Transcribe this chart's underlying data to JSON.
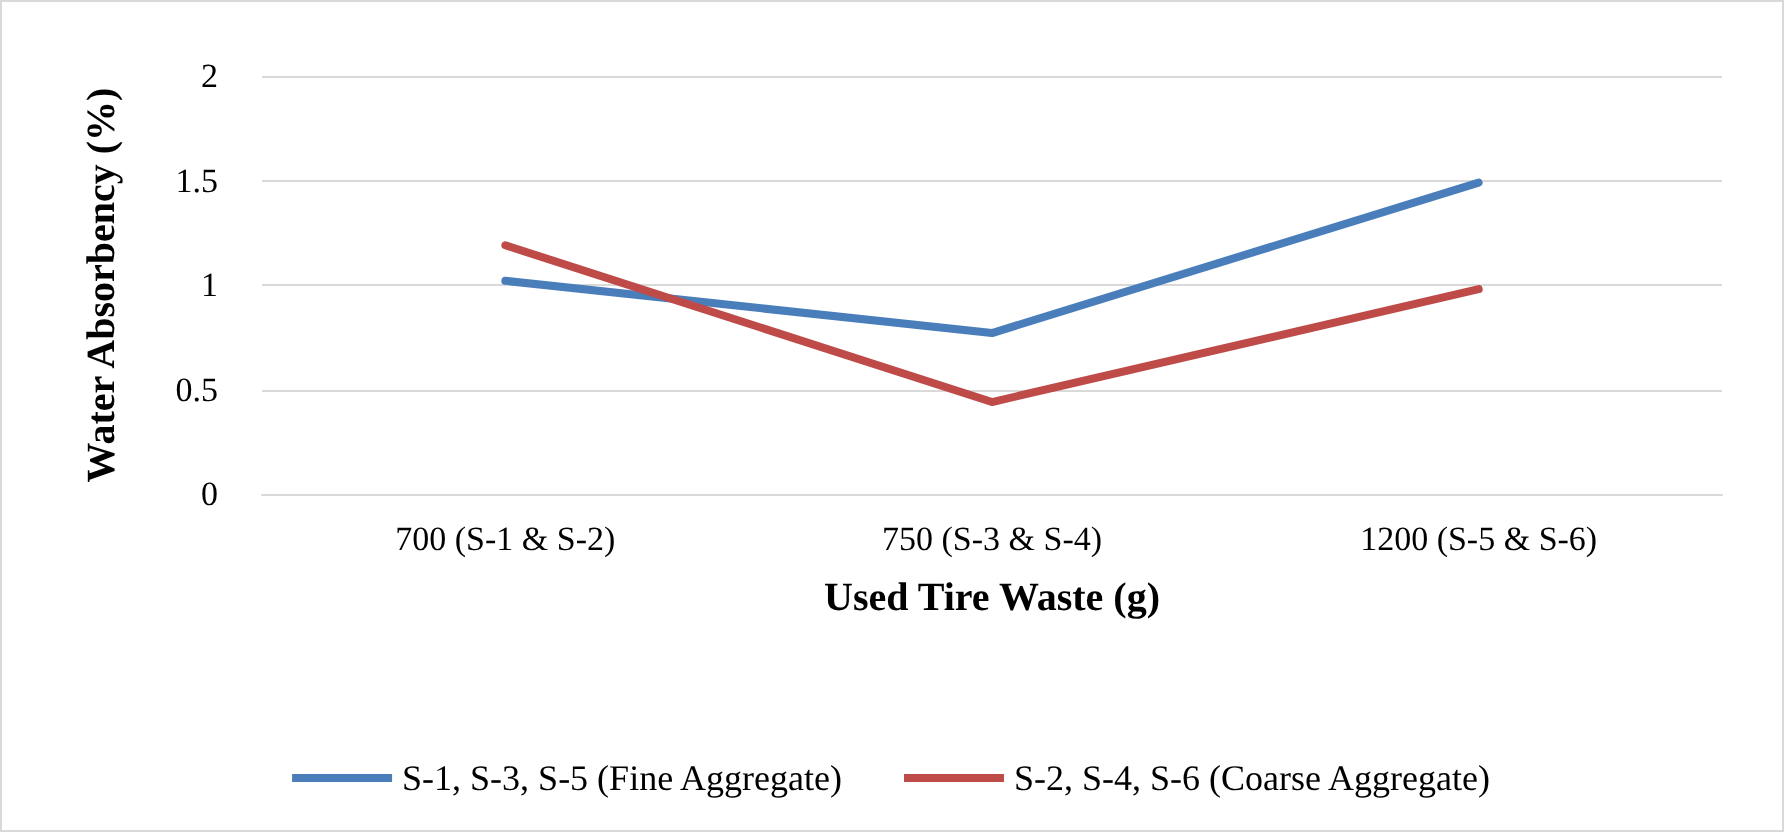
{
  "chart_data": {
    "type": "line",
    "xlabel": "Used Tire Waste (g)",
    "ylabel": "Water Absorbency (%)",
    "categories": [
      "700 (S-1 & S-2)",
      "750 (S-3 & S-4)",
      "1200 (S-5 & S-6)"
    ],
    "series": [
      {
        "name": "S-1, S-3, S-5 (Fine Aggregate)",
        "color": "#4a7ebb",
        "values": [
          1.02,
          0.77,
          1.49
        ]
      },
      {
        "name": "S-2, S-4, S-6 (Coarse Aggregate)",
        "color": "#be4b48",
        "values": [
          1.19,
          0.44,
          0.98
        ]
      }
    ],
    "ylim": [
      0,
      2
    ],
    "yticks": [
      0,
      0.5,
      1,
      1.5,
      2
    ],
    "grid": "y",
    "legend": "bottom",
    "marker": "none",
    "line_style": "solid"
  }
}
